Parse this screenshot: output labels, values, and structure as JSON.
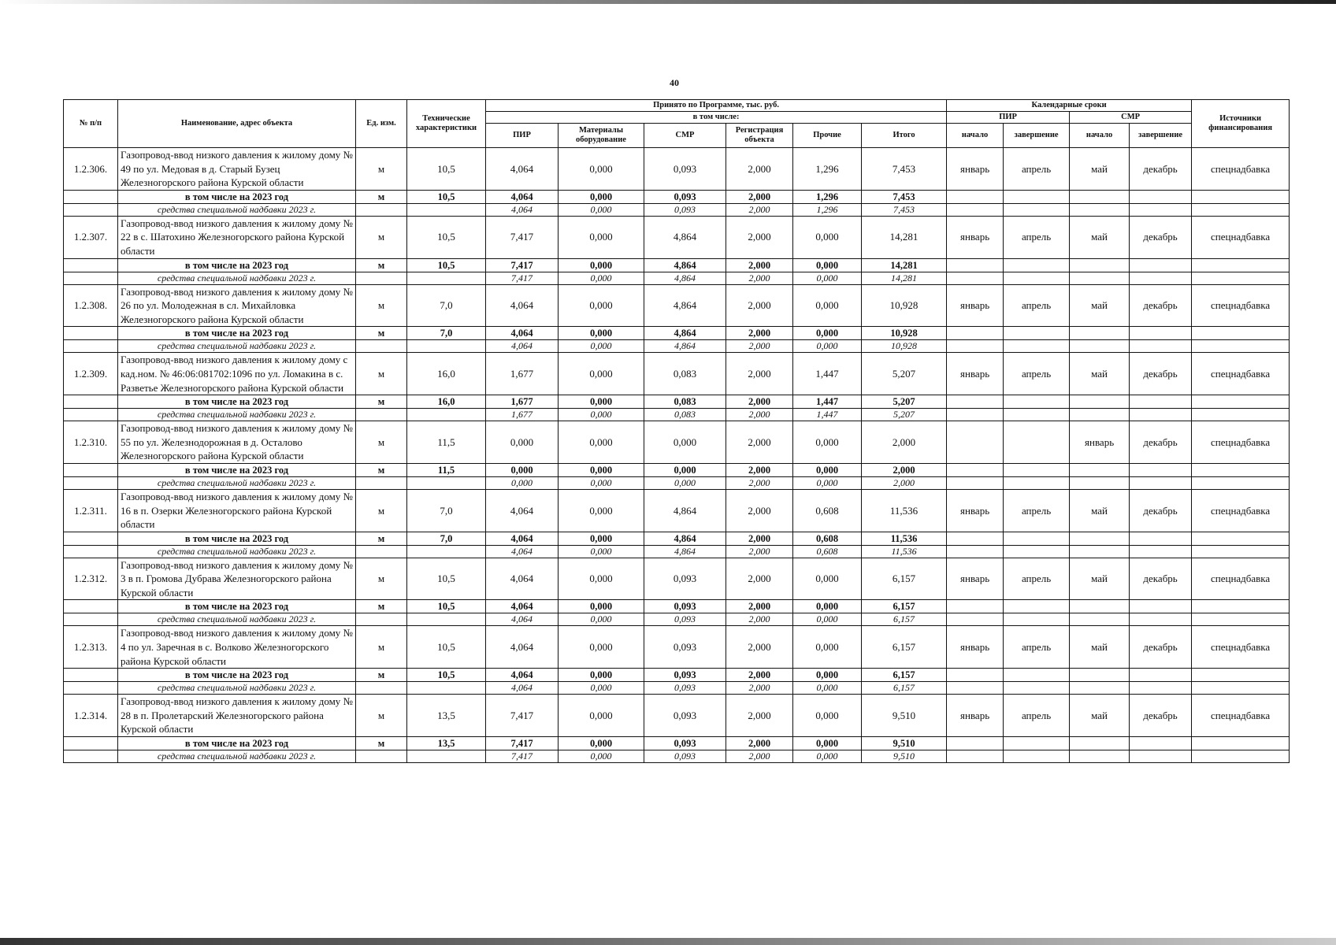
{
  "page_number": "40",
  "header": {
    "num": "№ п/п",
    "name": "Наименование, адрес объекта",
    "unit": "Ед. изм.",
    "tech": "Технические характеристики",
    "accepted": "Принято по Программе, тыс. руб.",
    "including": "в том числе:",
    "pir": "ПИР",
    "materials": "Материалы оборудование",
    "smr": "СМР",
    "registration": "Регистрация объекта",
    "other": "Прочие",
    "total": "Итого",
    "calendar": "Календарные сроки",
    "cal_pir": "ПИР",
    "cal_smr": "СМР",
    "start": "начало",
    "end": "завершение",
    "funding": "Источники финансирования"
  },
  "sub_label": "в том числе на 2023 год",
  "src_label": "средства специальной надбавки 2023 г.",
  "items": [
    {
      "num": "1.2.306.",
      "name": "Газопровод-ввод низкого давления к жилому дому № 49 по ул. Медовая в д. Старый Бузец Железногорского района Курской области",
      "unit": "м",
      "tech": "10,5",
      "pir": "4,064",
      "mat": "0,000",
      "smr": "0,093",
      "reg": "2,000",
      "other": "1,296",
      "total": "7,453",
      "pir_start": "январь",
      "pir_end": "апрель",
      "smr_start": "май",
      "smr_end": "декабрь",
      "funding": "спецнадбавка"
    },
    {
      "num": "1.2.307.",
      "name": "Газопровод-ввод низкого давления к жилому дому № 22 в с. Шатохино Железногорского района Курской области",
      "unit": "м",
      "tech": "10,5",
      "pir": "7,417",
      "mat": "0,000",
      "smr": "4,864",
      "reg": "2,000",
      "other": "0,000",
      "total": "14,281",
      "pir_start": "январь",
      "pir_end": "апрель",
      "smr_start": "май",
      "smr_end": "декабрь",
      "funding": "спецнадбавка"
    },
    {
      "num": "1.2.308.",
      "name": "Газопровод-ввод низкого давления к жилому дому № 26 по ул. Молодежная  в сл. Михайловка Железногорского района Курской области",
      "unit": "м",
      "tech": "7,0",
      "pir": "4,064",
      "mat": "0,000",
      "smr": "4,864",
      "reg": "2,000",
      "other": "0,000",
      "total": "10,928",
      "pir_start": "январь",
      "pir_end": "апрель",
      "smr_start": "май",
      "smr_end": "декабрь",
      "funding": "спецнадбавка"
    },
    {
      "num": "1.2.309.",
      "name": "Газопровод-ввод низкого давления к жилому дому с кад.ном. № 46:06:081702:1096 по ул. Ломакина в с. Разветье Железногорского района Курской области",
      "unit": "м",
      "tech": "16,0",
      "pir": "1,677",
      "mat": "0,000",
      "smr": "0,083",
      "reg": "2,000",
      "other": "1,447",
      "total": "5,207",
      "pir_start": "январь",
      "pir_end": "апрель",
      "smr_start": "май",
      "smr_end": "декабрь",
      "funding": "спецнадбавка"
    },
    {
      "num": "1.2.310.",
      "name": "Газопровод-ввод низкого давления к жилому дому № 55 по ул. Железнодорожная в д. Осталово Железногорского района Курской области",
      "unit": "м",
      "tech": "11,5",
      "pir": "0,000",
      "mat": "0,000",
      "smr": "0,000",
      "reg": "2,000",
      "other": "0,000",
      "total": "2,000",
      "pir_start": "",
      "pir_end": "",
      "smr_start": "январь",
      "smr_end": "декабрь",
      "funding": "спецнадбавка"
    },
    {
      "num": "1.2.311.",
      "name": "Газопровод-ввод низкого давления к жилому дому № 16 в п. Озерки Железногорского района Курской области",
      "unit": "м",
      "tech": "7,0",
      "pir": "4,064",
      "mat": "0,000",
      "smr": "4,864",
      "reg": "2,000",
      "other": "0,608",
      "total": "11,536",
      "pir_start": "январь",
      "pir_end": "апрель",
      "smr_start": "май",
      "smr_end": "декабрь",
      "funding": "спецнадбавка"
    },
    {
      "num": "1.2.312.",
      "name": "Газопровод-ввод низкого давления к жилому дому № 3 в п. Громова Дубрава Железногорского района Курской области",
      "unit": "м",
      "tech": "10,5",
      "pir": "4,064",
      "mat": "0,000",
      "smr": "0,093",
      "reg": "2,000",
      "other": "0,000",
      "total": "6,157",
      "pir_start": "январь",
      "pir_end": "апрель",
      "smr_start": "май",
      "smr_end": "декабрь",
      "funding": "спецнадбавка"
    },
    {
      "num": "1.2.313.",
      "name": "Газопровод-ввод низкого давления к жилому дому № 4 по ул. Заречная в с. Волково Железногорского района Курской области",
      "unit": "м",
      "tech": "10,5",
      "pir": "4,064",
      "mat": "0,000",
      "smr": "0,093",
      "reg": "2,000",
      "other": "0,000",
      "total": "6,157",
      "pir_start": "январь",
      "pir_end": "апрель",
      "smr_start": "май",
      "smr_end": "декабрь",
      "funding": "спецнадбавка"
    },
    {
      "num": "1.2.314.",
      "name": "Газопровод-ввод низкого давления к жилому дому № 28 в п. Пролетарский  Железногорского района Курской области",
      "unit": "м",
      "tech": "13,5",
      "pir": "7,417",
      "mat": "0,000",
      "smr": "0,093",
      "reg": "2,000",
      "other": "0,000",
      "total": "9,510",
      "pir_start": "январь",
      "pir_end": "апрель",
      "smr_start": "май",
      "smr_end": "декабрь",
      "funding": "спецнадбавка"
    }
  ]
}
